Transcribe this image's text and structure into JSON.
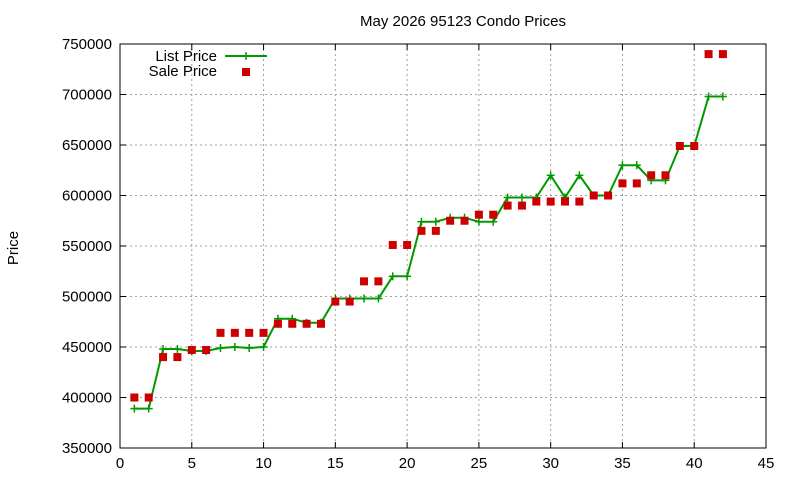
{
  "chart_data": {
    "type": "line",
    "title": "May 2026 95123 Condo Prices",
    "xlabel": "",
    "ylabel": "Price",
    "xlim": [
      0,
      45
    ],
    "ylim": [
      350000,
      750000
    ],
    "xticks": [
      0,
      5,
      10,
      15,
      20,
      25,
      30,
      35,
      40,
      45
    ],
    "yticks": [
      350000,
      400000,
      450000,
      500000,
      550000,
      600000,
      650000,
      700000,
      750000
    ],
    "grid": true,
    "legend_position": "top-left",
    "series": [
      {
        "name": "List Price",
        "style": "line-with-plus-markers",
        "color": "#009900",
        "x": [
          1,
          2,
          3,
          4,
          5,
          6,
          7,
          8,
          9,
          10,
          11,
          12,
          13,
          14,
          15,
          16,
          17,
          18,
          19,
          20,
          21,
          22,
          23,
          24,
          25,
          26,
          27,
          28,
          29,
          30,
          31,
          32,
          33,
          34,
          35,
          36,
          37,
          38,
          39,
          40,
          41,
          42
        ],
        "y": [
          389000,
          389000,
          448000,
          448000,
          446000,
          446000,
          449000,
          450000,
          449000,
          450000,
          478000,
          478000,
          474000,
          474000,
          498000,
          498000,
          498000,
          498000,
          520000,
          520000,
          574000,
          574000,
          578000,
          578000,
          574000,
          574000,
          598000,
          598000,
          598000,
          620000,
          598000,
          620000,
          600000,
          600000,
          630000,
          630000,
          615000,
          615000,
          649000,
          649000,
          698000,
          698000
        ]
      },
      {
        "name": "Sale Price",
        "style": "square-markers",
        "color": "#cc0000",
        "x": [
          1,
          2,
          3,
          4,
          5,
          6,
          7,
          8,
          9,
          10,
          11,
          12,
          13,
          14,
          15,
          16,
          17,
          18,
          19,
          20,
          21,
          22,
          23,
          24,
          25,
          26,
          27,
          28,
          29,
          30,
          31,
          32,
          33,
          34,
          35,
          36,
          37,
          38,
          39,
          40,
          41,
          42
        ],
        "y": [
          400000,
          400000,
          440000,
          440000,
          447000,
          447000,
          464000,
          464000,
          464000,
          464000,
          473000,
          473000,
          473000,
          473000,
          495000,
          495000,
          515000,
          515000,
          551000,
          551000,
          565000,
          565000,
          575000,
          575000,
          581000,
          581000,
          590000,
          590000,
          594000,
          594000,
          594000,
          594000,
          600000,
          600000,
          612000,
          612000,
          620000,
          620000,
          649000,
          649000,
          740000,
          740000
        ]
      }
    ]
  }
}
